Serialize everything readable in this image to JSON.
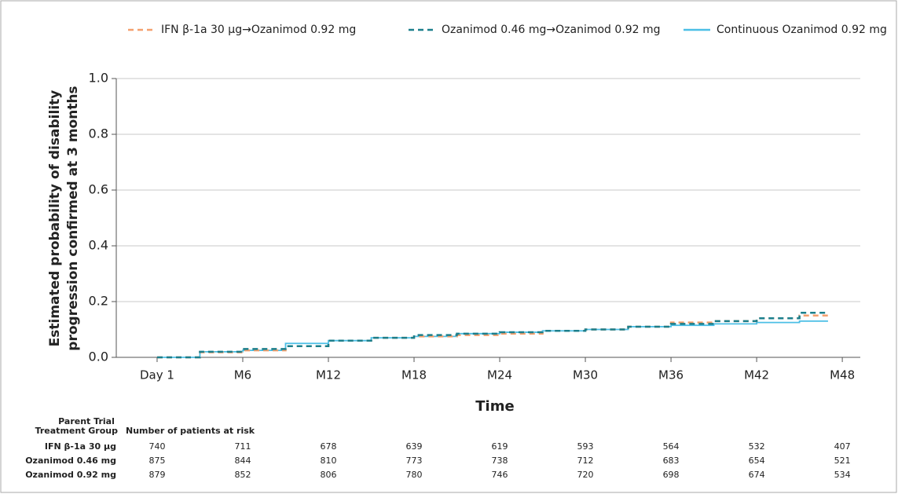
{
  "chart_data": {
    "type": "step",
    "ylabel": [
      "Estimated probability of disability",
      "progression confirmed at 3 months"
    ],
    "xlabel": "Time",
    "x": [
      0,
      3,
      6,
      9,
      12,
      15,
      18,
      21,
      24,
      27,
      30,
      33,
      36,
      39,
      42,
      45,
      47
    ],
    "series": [
      {
        "name": "IFN β-1a 30 µg→Ozanimod 0.92 mg",
        "color": "#f4a06e",
        "linestyle": "dashed",
        "values": [
          0,
          0.018,
          0.025,
          0.04,
          0.06,
          0.07,
          0.075,
          0.08,
          0.085,
          0.095,
          0.1,
          0.11,
          0.125,
          0.13,
          0.14,
          0.15,
          0.15
        ]
      },
      {
        "name": "Ozanimod 0.46 mg→Ozanimod 0.92 mg",
        "color": "#1b7f8c",
        "linestyle": "dashed",
        "values": [
          0,
          0.02,
          0.03,
          0.04,
          0.06,
          0.07,
          0.08,
          0.085,
          0.09,
          0.095,
          0.1,
          0.11,
          0.12,
          0.13,
          0.14,
          0.16,
          0.16
        ]
      },
      {
        "name": "Continuous Ozanimod 0.92 mg",
        "color": "#4cbfe6",
        "linestyle": "solid",
        "values": [
          0,
          0.02,
          0.025,
          0.05,
          0.06,
          0.07,
          0.075,
          0.085,
          0.09,
          0.095,
          0.1,
          0.11,
          0.115,
          0.12,
          0.125,
          0.13,
          0.13
        ]
      }
    ],
    "xlim": [
      -2.86,
      49.26
    ],
    "xticks": [
      {
        "value": 0,
        "label": "Day 1"
      },
      {
        "value": 6,
        "label": "M6"
      },
      {
        "value": 12,
        "label": "M12"
      },
      {
        "value": 18,
        "label": "M18"
      },
      {
        "value": 24,
        "label": "M24"
      },
      {
        "value": 30,
        "label": "M30"
      },
      {
        "value": 36,
        "label": "M36"
      },
      {
        "value": 42,
        "label": "M42"
      },
      {
        "value": 48,
        "label": "M48"
      }
    ],
    "ylim": [
      0,
      1
    ],
    "yticks": [
      {
        "value": 0,
        "label": "0.0"
      },
      {
        "value": 0.2,
        "label": "0.2"
      },
      {
        "value": 0.4,
        "label": "0.4"
      },
      {
        "value": 0.6,
        "label": "0.6"
      },
      {
        "value": 0.8,
        "label": "0.8"
      },
      {
        "value": 1,
        "label": "1.0"
      }
    ],
    "grid": true
  },
  "risk_table": {
    "header": [
      "Parent Trial",
      "Treatment Group"
    ],
    "title": "Number of patients at risk",
    "rows": [
      {
        "name": "IFN β-1a 30 µg",
        "values": [
          "740",
          "711",
          "678",
          "639",
          "619",
          "593",
          "564",
          "532",
          "407"
        ]
      },
      {
        "name": "Ozanimod 0.46 mg",
        "values": [
          "875",
          "844",
          "810",
          "773",
          "738",
          "712",
          "683",
          "654",
          "521"
        ]
      },
      {
        "name": "Ozanimod 0.92 mg",
        "values": [
          "879",
          "852",
          "806",
          "780",
          "746",
          "720",
          "698",
          "674",
          "534"
        ]
      }
    ]
  }
}
